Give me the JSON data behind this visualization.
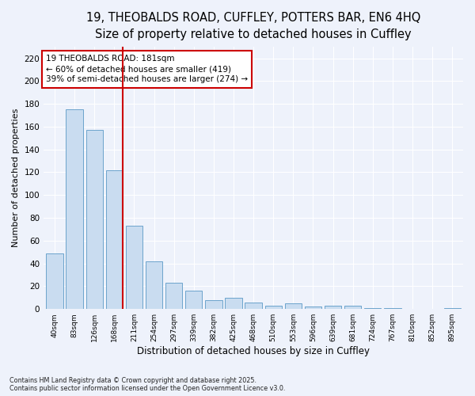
{
  "title_line1": "19, THEOBALDS ROAD, CUFFLEY, POTTERS BAR, EN6 4HQ",
  "title_line2": "Size of property relative to detached houses in Cuffley",
  "xlabel": "Distribution of detached houses by size in Cuffley",
  "ylabel": "Number of detached properties",
  "categories": [
    "40sqm",
    "83sqm",
    "126sqm",
    "168sqm",
    "211sqm",
    "254sqm",
    "297sqm",
    "339sqm",
    "382sqm",
    "425sqm",
    "468sqm",
    "510sqm",
    "553sqm",
    "596sqm",
    "639sqm",
    "681sqm",
    "724sqm",
    "767sqm",
    "810sqm",
    "852sqm",
    "895sqm"
  ],
  "values": [
    49,
    175,
    157,
    122,
    73,
    42,
    23,
    16,
    8,
    10,
    6,
    3,
    5,
    2,
    3,
    3,
    1,
    1,
    0,
    0,
    1
  ],
  "bar_color": "#c9dcf0",
  "bar_edge_color": "#6ca3cc",
  "vline_color": "#cc0000",
  "annotation_text": "19 THEOBALDS ROAD: 181sqm\n← 60% of detached houses are smaller (419)\n39% of semi-detached houses are larger (274) →",
  "annotation_box_color": "#ffffff",
  "annotation_box_edge": "#cc0000",
  "ylim": [
    0,
    230
  ],
  "yticks": [
    0,
    20,
    40,
    60,
    80,
    100,
    120,
    140,
    160,
    180,
    200,
    220
  ],
  "footer_line1": "Contains HM Land Registry data © Crown copyright and database right 2025.",
  "footer_line2": "Contains public sector information licensed under the Open Government Licence v3.0.",
  "bg_color": "#eef2fb",
  "title_fontsize": 10.5,
  "subtitle_fontsize": 9.5,
  "vline_x": 3.43
}
